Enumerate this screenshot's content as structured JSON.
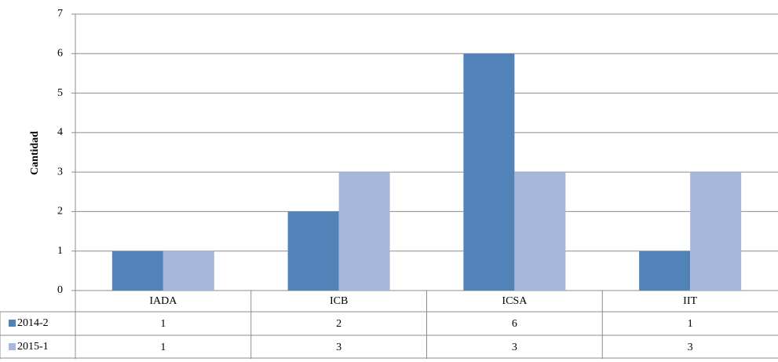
{
  "chart_data": {
    "type": "bar",
    "y_label": "Cantidad",
    "categories": [
      "IADA",
      "ICB",
      "ICSA",
      "IIT"
    ],
    "series": [
      {
        "name": "2014-2",
        "color": "#5283b8",
        "values": [
          1,
          2,
          6,
          1
        ]
      },
      {
        "name": "2015-1",
        "color": "#a6b9da",
        "values": [
          1,
          3,
          3,
          3
        ]
      }
    ],
    "ylim": [
      0,
      7
    ],
    "yticks": [
      0,
      1,
      2,
      3,
      4,
      5,
      6,
      7
    ],
    "grid": true,
    "data_table": true
  }
}
